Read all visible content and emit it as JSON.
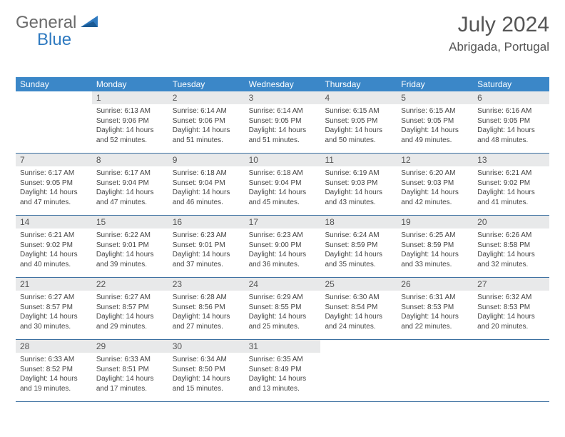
{
  "logo": {
    "text1": "General",
    "text2": "Blue"
  },
  "title": {
    "month_year": "July 2024",
    "location": "Abrigada, Portugal"
  },
  "colors": {
    "header_bar": "#3b87c8",
    "day_num_bg": "#e8e9ea",
    "week_border": "#3b6fa0",
    "logo_gray": "#6b6b6b",
    "logo_blue": "#2f7ac0",
    "text": "#444444"
  },
  "dow": [
    "Sunday",
    "Monday",
    "Tuesday",
    "Wednesday",
    "Thursday",
    "Friday",
    "Saturday"
  ],
  "weeks": [
    [
      {
        "n": "",
        "s": "",
        "u": "",
        "d": ""
      },
      {
        "n": "1",
        "s": "Sunrise: 6:13 AM",
        "u": "Sunset: 9:06 PM",
        "d": "Daylight: 14 hours and 52 minutes."
      },
      {
        "n": "2",
        "s": "Sunrise: 6:14 AM",
        "u": "Sunset: 9:06 PM",
        "d": "Daylight: 14 hours and 51 minutes."
      },
      {
        "n": "3",
        "s": "Sunrise: 6:14 AM",
        "u": "Sunset: 9:05 PM",
        "d": "Daylight: 14 hours and 51 minutes."
      },
      {
        "n": "4",
        "s": "Sunrise: 6:15 AM",
        "u": "Sunset: 9:05 PM",
        "d": "Daylight: 14 hours and 50 minutes."
      },
      {
        "n": "5",
        "s": "Sunrise: 6:15 AM",
        "u": "Sunset: 9:05 PM",
        "d": "Daylight: 14 hours and 49 minutes."
      },
      {
        "n": "6",
        "s": "Sunrise: 6:16 AM",
        "u": "Sunset: 9:05 PM",
        "d": "Daylight: 14 hours and 48 minutes."
      }
    ],
    [
      {
        "n": "7",
        "s": "Sunrise: 6:17 AM",
        "u": "Sunset: 9:05 PM",
        "d": "Daylight: 14 hours and 47 minutes."
      },
      {
        "n": "8",
        "s": "Sunrise: 6:17 AM",
        "u": "Sunset: 9:04 PM",
        "d": "Daylight: 14 hours and 47 minutes."
      },
      {
        "n": "9",
        "s": "Sunrise: 6:18 AM",
        "u": "Sunset: 9:04 PM",
        "d": "Daylight: 14 hours and 46 minutes."
      },
      {
        "n": "10",
        "s": "Sunrise: 6:18 AM",
        "u": "Sunset: 9:04 PM",
        "d": "Daylight: 14 hours and 45 minutes."
      },
      {
        "n": "11",
        "s": "Sunrise: 6:19 AM",
        "u": "Sunset: 9:03 PM",
        "d": "Daylight: 14 hours and 43 minutes."
      },
      {
        "n": "12",
        "s": "Sunrise: 6:20 AM",
        "u": "Sunset: 9:03 PM",
        "d": "Daylight: 14 hours and 42 minutes."
      },
      {
        "n": "13",
        "s": "Sunrise: 6:21 AM",
        "u": "Sunset: 9:02 PM",
        "d": "Daylight: 14 hours and 41 minutes."
      }
    ],
    [
      {
        "n": "14",
        "s": "Sunrise: 6:21 AM",
        "u": "Sunset: 9:02 PM",
        "d": "Daylight: 14 hours and 40 minutes."
      },
      {
        "n": "15",
        "s": "Sunrise: 6:22 AM",
        "u": "Sunset: 9:01 PM",
        "d": "Daylight: 14 hours and 39 minutes."
      },
      {
        "n": "16",
        "s": "Sunrise: 6:23 AM",
        "u": "Sunset: 9:01 PM",
        "d": "Daylight: 14 hours and 37 minutes."
      },
      {
        "n": "17",
        "s": "Sunrise: 6:23 AM",
        "u": "Sunset: 9:00 PM",
        "d": "Daylight: 14 hours and 36 minutes."
      },
      {
        "n": "18",
        "s": "Sunrise: 6:24 AM",
        "u": "Sunset: 8:59 PM",
        "d": "Daylight: 14 hours and 35 minutes."
      },
      {
        "n": "19",
        "s": "Sunrise: 6:25 AM",
        "u": "Sunset: 8:59 PM",
        "d": "Daylight: 14 hours and 33 minutes."
      },
      {
        "n": "20",
        "s": "Sunrise: 6:26 AM",
        "u": "Sunset: 8:58 PM",
        "d": "Daylight: 14 hours and 32 minutes."
      }
    ],
    [
      {
        "n": "21",
        "s": "Sunrise: 6:27 AM",
        "u": "Sunset: 8:57 PM",
        "d": "Daylight: 14 hours and 30 minutes."
      },
      {
        "n": "22",
        "s": "Sunrise: 6:27 AM",
        "u": "Sunset: 8:57 PM",
        "d": "Daylight: 14 hours and 29 minutes."
      },
      {
        "n": "23",
        "s": "Sunrise: 6:28 AM",
        "u": "Sunset: 8:56 PM",
        "d": "Daylight: 14 hours and 27 minutes."
      },
      {
        "n": "24",
        "s": "Sunrise: 6:29 AM",
        "u": "Sunset: 8:55 PM",
        "d": "Daylight: 14 hours and 25 minutes."
      },
      {
        "n": "25",
        "s": "Sunrise: 6:30 AM",
        "u": "Sunset: 8:54 PM",
        "d": "Daylight: 14 hours and 24 minutes."
      },
      {
        "n": "26",
        "s": "Sunrise: 6:31 AM",
        "u": "Sunset: 8:53 PM",
        "d": "Daylight: 14 hours and 22 minutes."
      },
      {
        "n": "27",
        "s": "Sunrise: 6:32 AM",
        "u": "Sunset: 8:53 PM",
        "d": "Daylight: 14 hours and 20 minutes."
      }
    ],
    [
      {
        "n": "28",
        "s": "Sunrise: 6:33 AM",
        "u": "Sunset: 8:52 PM",
        "d": "Daylight: 14 hours and 19 minutes."
      },
      {
        "n": "29",
        "s": "Sunrise: 6:33 AM",
        "u": "Sunset: 8:51 PM",
        "d": "Daylight: 14 hours and 17 minutes."
      },
      {
        "n": "30",
        "s": "Sunrise: 6:34 AM",
        "u": "Sunset: 8:50 PM",
        "d": "Daylight: 14 hours and 15 minutes."
      },
      {
        "n": "31",
        "s": "Sunrise: 6:35 AM",
        "u": "Sunset: 8:49 PM",
        "d": "Daylight: 14 hours and 13 minutes."
      },
      {
        "n": "",
        "s": "",
        "u": "",
        "d": ""
      },
      {
        "n": "",
        "s": "",
        "u": "",
        "d": ""
      },
      {
        "n": "",
        "s": "",
        "u": "",
        "d": ""
      }
    ]
  ]
}
